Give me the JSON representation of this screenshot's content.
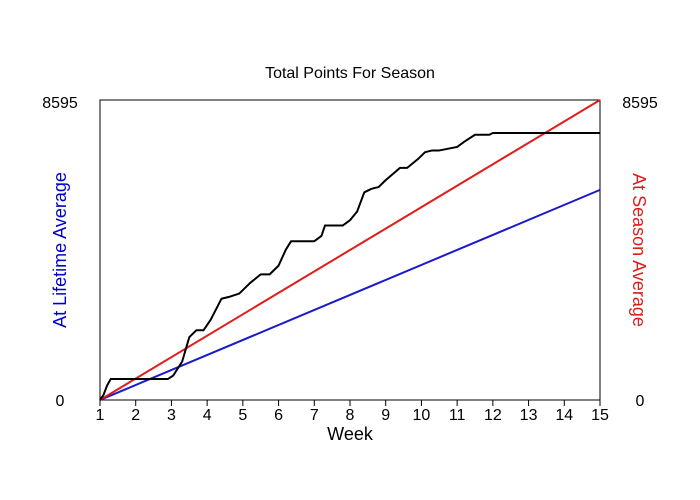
{
  "chart_data": {
    "type": "line",
    "title": "Total Points For Season",
    "xlabel": "Week",
    "ylabel_left": "At Lifetime Average",
    "ylabel_right": "At Season Average",
    "xlim": [
      1,
      15
    ],
    "ylim": [
      0,
      8595
    ],
    "x_ticks": [
      1,
      2,
      3,
      4,
      5,
      6,
      7,
      8,
      9,
      10,
      11,
      12,
      13,
      14,
      15
    ],
    "y_tick_labels_left": [
      "8595",
      "0"
    ],
    "y_tick_labels_right": [
      "8595",
      "0"
    ],
    "grid": false,
    "legend": "none",
    "colors": {
      "actual": "#000000",
      "lifetime": "#1a1acc",
      "season": "#e01c1c",
      "ylabel_left": "#0000cc",
      "ylabel_right": "#e01c1c"
    },
    "series": [
      {
        "key": "actual",
        "x": [
          1,
          1.1,
          1.2,
          1.3,
          1.5,
          2.0,
          2.5,
          2.9,
          3.05,
          3.3,
          3.5,
          3.7,
          3.9,
          4.1,
          4.4,
          4.6,
          4.9,
          5.2,
          5.5,
          5.75,
          6.0,
          6.2,
          6.35,
          6.5,
          6.7,
          7.0,
          7.2,
          7.3,
          7.5,
          7.8,
          8.0,
          8.2,
          8.4,
          8.6,
          8.8,
          9.0,
          9.4,
          9.6,
          9.9,
          10.1,
          10.3,
          10.5,
          11.0,
          11.2,
          11.5,
          11.9,
          12.0,
          12.5,
          13.0,
          13.5,
          14.0,
          14.5,
          15.0
        ],
        "y": [
          0,
          150,
          420,
          600,
          600,
          600,
          600,
          600,
          700,
          1100,
          1800,
          2000,
          2000,
          2300,
          2900,
          2950,
          3050,
          3350,
          3600,
          3600,
          3850,
          4300,
          4550,
          4550,
          4550,
          4550,
          4700,
          5000,
          5000,
          5000,
          5150,
          5400,
          5950,
          6050,
          6100,
          6300,
          6650,
          6650,
          6900,
          7100,
          7150,
          7150,
          7250,
          7400,
          7600,
          7600,
          7650,
          7650,
          7650,
          7650,
          7650,
          7650,
          7650
        ]
      },
      {
        "key": "lifetime",
        "x": [
          1,
          15
        ],
        "y": [
          0,
          6020
        ]
      },
      {
        "key": "season",
        "x": [
          1,
          15
        ],
        "y": [
          0,
          8595
        ]
      }
    ]
  }
}
